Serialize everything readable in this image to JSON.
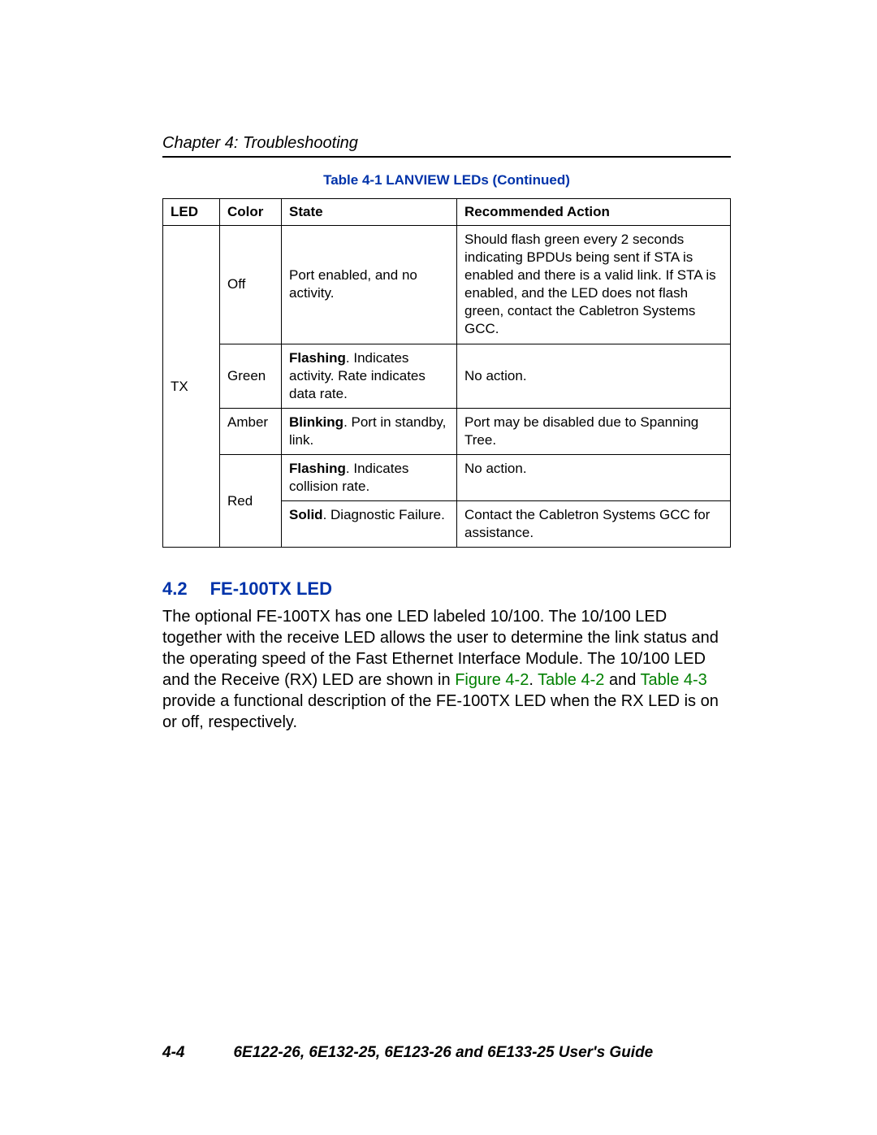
{
  "header": {
    "chapter_label": "Chapter 4: Troubleshooting"
  },
  "table_caption": "Table 4-1   LANVIEW LEDs (Continued)",
  "table": {
    "columns": [
      "LED",
      "Color",
      "State",
      "Recommended Action"
    ],
    "led_value": "TX",
    "rows": [
      {
        "color": "Off",
        "state_plain": "Port enabled, and no activity.",
        "action": "Should flash green every 2 seconds indicating BPDUs being sent if STA is enabled and there is a valid link. If STA is enabled, and the LED does not flash green, contact the Cabletron Systems GCC."
      },
      {
        "color": "Green",
        "state_bold": "Flashing",
        "state_rest": ". Indicates activity. Rate indicates data rate.",
        "action": "No action."
      },
      {
        "color": "Amber",
        "state_bold": "Blinking",
        "state_rest": ". Port in standby, link.",
        "action": "Port may be disabled due to Spanning Tree."
      },
      {
        "color": "Red",
        "state_bold": "Flashing",
        "state_rest": ". Indicates collision rate.",
        "action": "No action."
      },
      {
        "state_bold": "Solid",
        "state_rest": ". Diagnostic Failure.",
        "action": "Contact the Cabletron Systems GCC for assistance."
      }
    ]
  },
  "section": {
    "number": "4.2",
    "title": "FE-100TX LED",
    "para_part1": "The optional FE-100TX has one LED labeled 10/100. The 10/100 LED together with the receive LED allows the user to determine the link status and the operating speed of the Fast Ethernet Interface Module. The 10/100 LED and the Receive (RX) LED are shown in ",
    "link1": "Figure 4-2",
    "para_part2": ". ",
    "link2": "Table 4-2",
    "para_part3": " and ",
    "link3": "Table 4-3",
    "para_part4": " provide a functional description of the FE-100TX LED when the RX LED is on or off, respectively."
  },
  "footer": {
    "page_number": "4-4",
    "guide_title": "6E122-26, 6E132-25, 6E123-26 and 6E133-25 User's Guide"
  },
  "colors": {
    "heading_blue": "#0033aa",
    "link_green": "#008000",
    "text_black": "#000000"
  }
}
